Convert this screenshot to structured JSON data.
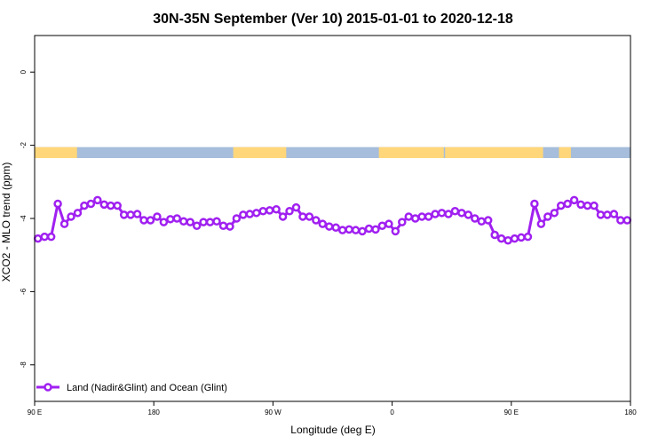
{
  "chart_data": {
    "type": "line",
    "title": "30N-35N September (Ver 10)   2015-01-01 to 2020-12-18",
    "xlabel": "Longitude (deg E)",
    "ylabel": "XCO2 - MLO trend (ppm)",
    "xlim": [
      90,
      540
    ],
    "ylim": [
      -9,
      1
    ],
    "x_ticks": [
      {
        "value": 90,
        "label": "90 E"
      },
      {
        "value": 180,
        "label": "180"
      },
      {
        "value": 270,
        "label": "90 W"
      },
      {
        "value": 360,
        "label": "0"
      },
      {
        "value": 450,
        "label": "90 E"
      },
      {
        "value": 540,
        "label": "180"
      }
    ],
    "y_ticks": [
      {
        "value": 0,
        "label": "0"
      },
      {
        "value": -2,
        "label": "-2"
      },
      {
        "value": -4,
        "label": "-4"
      },
      {
        "value": -6,
        "label": "-6"
      },
      {
        "value": -8,
        "label": "-8"
      }
    ],
    "series": [
      {
        "name": "Land (Nadir&Glint) and Ocean (Glint)",
        "color": "#a020f0",
        "x": [
          92.5,
          97.5,
          102.5,
          107.5,
          112.5,
          117.5,
          122.5,
          127.5,
          132.5,
          137.5,
          142.5,
          147.5,
          152.5,
          157.5,
          162.5,
          167.5,
          172.5,
          177.5,
          182.5,
          187.5,
          192.5,
          197.5,
          202.5,
          207.5,
          212.5,
          217.5,
          222.5,
          227.5,
          232.5,
          237.5,
          242.5,
          247.5,
          252.5,
          257.5,
          262.5,
          267.5,
          272.5,
          277.5,
          282.5,
          287.5,
          292.5,
          297.5,
          302.5,
          307.5,
          312.5,
          317.5,
          322.5,
          327.5,
          332.5,
          337.5,
          342.5,
          347.5,
          352.5,
          357.5,
          362.5,
          367.5,
          372.5,
          377.5,
          382.5,
          387.5,
          392.5,
          397.5,
          402.5,
          407.5,
          412.5,
          417.5,
          422.5,
          427.5,
          432.5,
          437.5,
          442.5,
          447.5,
          452.5,
          457.5,
          462.5,
          467.5,
          472.5,
          477.5,
          482.5,
          487.5,
          492.5,
          497.5,
          502.5,
          507.5,
          512.5,
          517.5,
          522.5,
          527.5,
          532.5,
          537.5
        ],
        "y": [
          -4.55,
          -4.5,
          -4.5,
          -3.6,
          -4.15,
          -3.95,
          -3.85,
          -3.65,
          -3.6,
          -3.5,
          -3.62,
          -3.65,
          -3.65,
          -3.9,
          -3.9,
          -3.88,
          -4.05,
          -4.05,
          -3.95,
          -4.1,
          -4.02,
          -4.0,
          -4.08,
          -4.1,
          -4.2,
          -4.1,
          -4.1,
          -4.08,
          -4.2,
          -4.22,
          -4.0,
          -3.9,
          -3.88,
          -3.85,
          -3.8,
          -3.78,
          -3.75,
          -3.95,
          -3.8,
          -3.7,
          -3.95,
          -3.95,
          -4.05,
          -4.15,
          -4.22,
          -4.25,
          -4.32,
          -4.3,
          -4.32,
          -4.35,
          -4.28,
          -4.3,
          -4.2,
          -4.15,
          -4.35,
          -4.1,
          -3.95,
          -4.0,
          -3.95,
          -3.95,
          -3.88,
          -3.85,
          -3.88,
          -3.8,
          -3.85,
          -3.9,
          -4.0,
          -4.08,
          -4.05,
          -4.45,
          -4.55,
          -4.6,
          -4.55,
          -4.52,
          -4.5,
          -3.6,
          -4.15,
          -3.95,
          -3.85,
          -3.65,
          -3.6,
          -3.5,
          -3.62,
          -3.65,
          -3.65,
          -3.9,
          -3.9,
          -3.88,
          -4.05,
          -4.05
        ]
      }
    ],
    "surface_strip": {
      "y_range": [
        -2.35,
        -2.05
      ],
      "land_color": "#ffd77a",
      "ocean_color": "#a6bddb",
      "land_spans": [
        [
          90,
          122
        ],
        [
          240,
          280
        ],
        [
          350,
          399
        ],
        [
          400,
          474
        ],
        [
          486,
          495
        ]
      ]
    },
    "legend_position": "bottom-left"
  }
}
